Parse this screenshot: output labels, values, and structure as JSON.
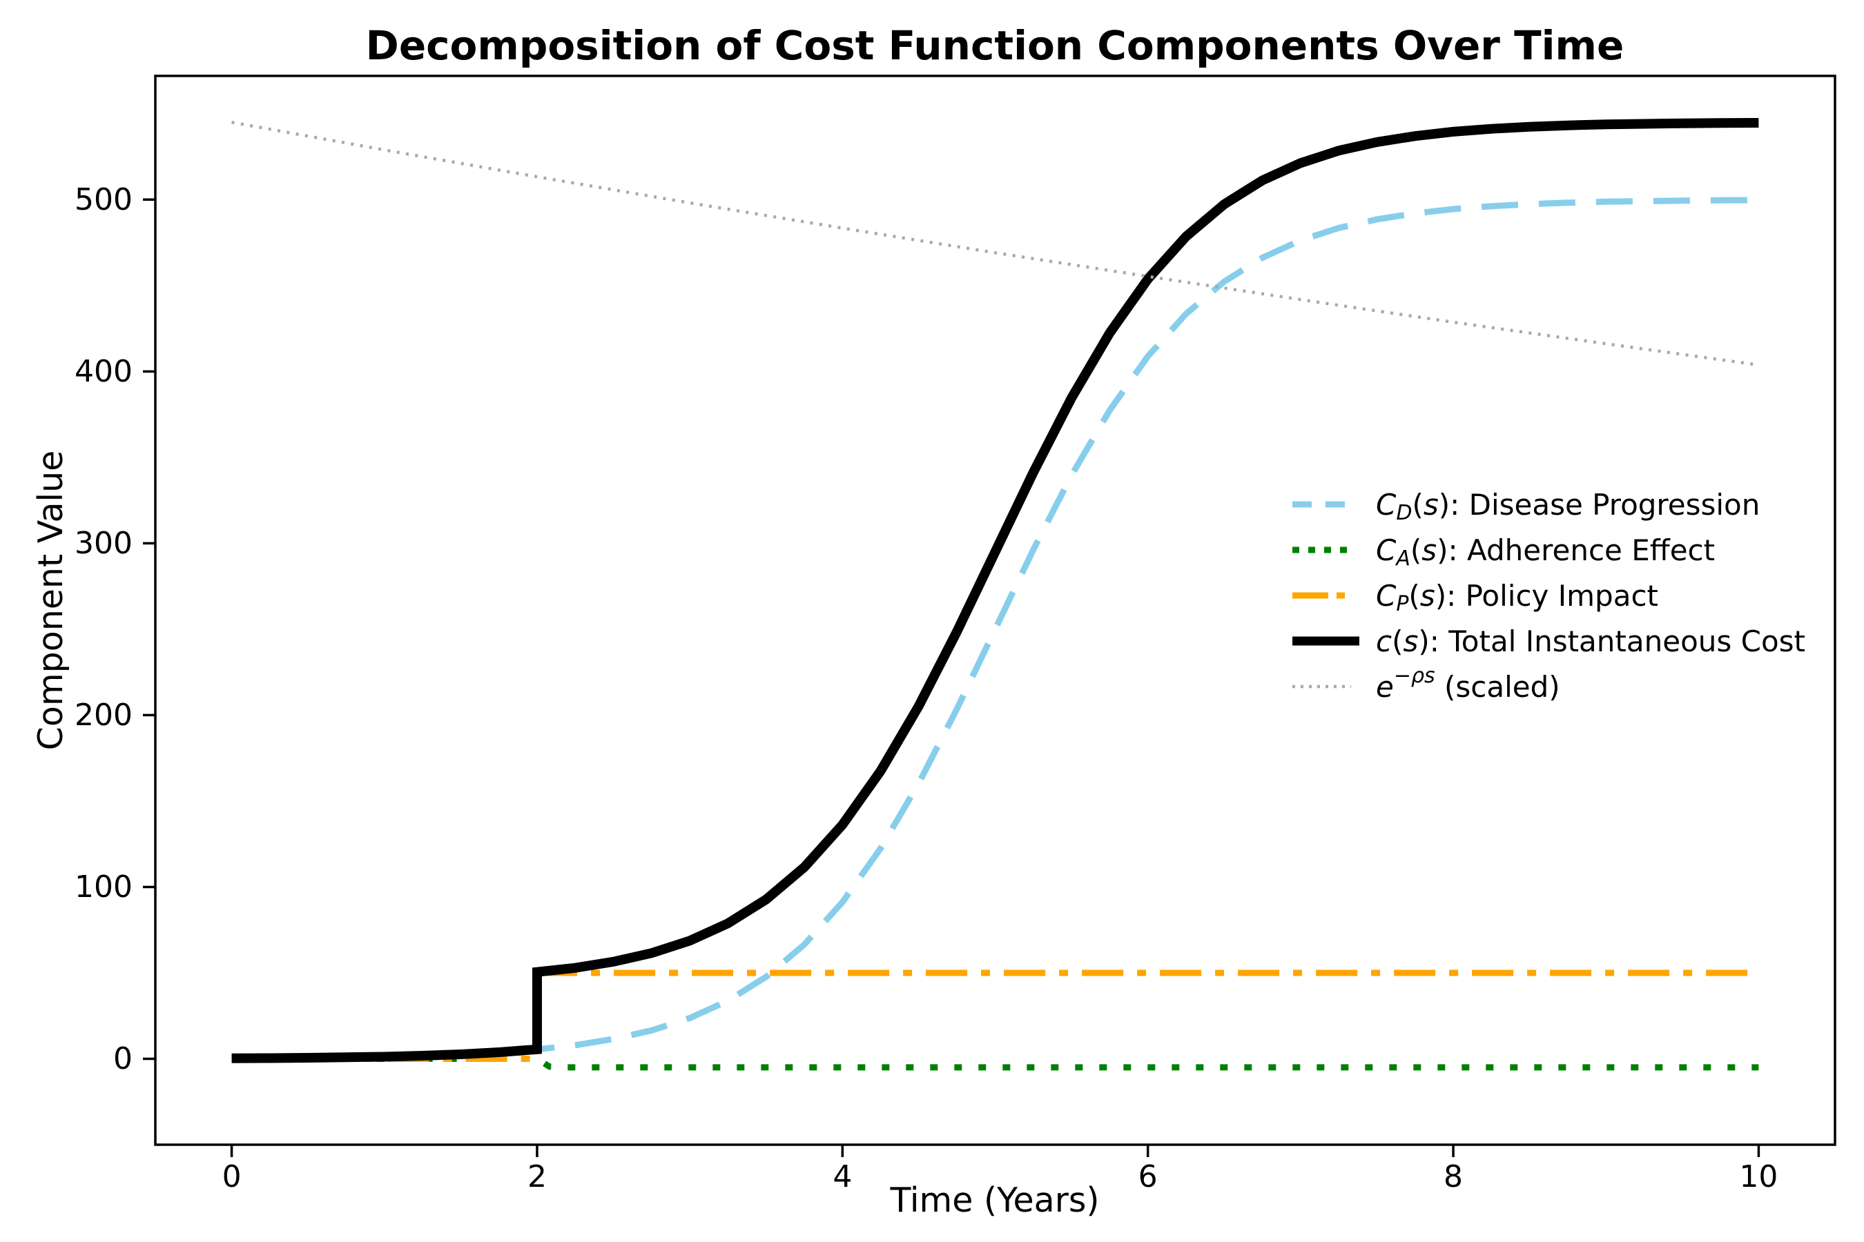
{
  "figure": {
    "background": "#ffffff"
  },
  "chart_data": {
    "type": "line",
    "title": "Decomposition of Cost Function Components Over Time",
    "xlabel": "Time (Years)",
    "ylabel": "Component Value",
    "xlim": [
      -0.5,
      10.5
    ],
    "ylim": [
      -50,
      572
    ],
    "x_ticks": [
      0,
      2,
      4,
      6,
      8,
      10
    ],
    "y_ticks": [
      0,
      100,
      200,
      300,
      400,
      500
    ],
    "grid": false,
    "legend": {
      "position": "center-right",
      "frame": false
    },
    "series": [
      {
        "name": "disease-progression",
        "label": "C_D(s): Disease Progression",
        "label_segments": [
          {
            "text": "C",
            "style": "italic"
          },
          {
            "text": "D",
            "style": "italic",
            "script": "sub"
          },
          {
            "text": "(",
            "style": "normal"
          },
          {
            "text": "s",
            "style": "italic"
          },
          {
            "text": "): Disease Progression",
            "style": "normal"
          }
        ],
        "color": "#87ceeb",
        "linestyle": "dashed",
        "dash": [
          53,
          30
        ],
        "legend_dash": [
          28,
          20
        ],
        "legend_len": 76,
        "width": 9,
        "x": [
          0,
          0.25,
          0.5,
          0.75,
          1,
          1.25,
          1.5,
          1.75,
          2,
          2.25,
          2.5,
          2.75,
          3,
          3.25,
          3.5,
          3.75,
          4,
          4.25,
          4.5,
          4.75,
          5,
          5.25,
          5.5,
          5.75,
          6,
          6.25,
          6.5,
          6.75,
          7,
          7.25,
          7.5,
          7.75,
          8,
          8.25,
          8.5,
          8.75,
          9,
          9.25,
          9.5,
          9.75,
          10
        ],
        "y": [
          0.3,
          0.4,
          0.6,
          0.9,
          1.2,
          1.8,
          2.6,
          3.8,
          5.5,
          7.9,
          11.5,
          16.5,
          23.7,
          33.8,
          47.7,
          66.5,
          91.2,
          122.5,
          160.4,
          203.7,
          250,
          296.3,
          339.6,
          377.4,
          408.8,
          433.5,
          452.3,
          466.2,
          476.3,
          483.5,
          488.5,
          492.0,
          494.5,
          496.2,
          497.4,
          498.2,
          498.8,
          499.1,
          499.4,
          499.6,
          499.7
        ]
      },
      {
        "name": "adherence-effect",
        "label": "C_A(s): Adherence Effect",
        "label_segments": [
          {
            "text": "C",
            "style": "italic"
          },
          {
            "text": "A",
            "style": "italic",
            "script": "sub"
          },
          {
            "text": "(",
            "style": "normal"
          },
          {
            "text": "s",
            "style": "italic"
          },
          {
            "text": "): Adherence Effect",
            "style": "normal"
          }
        ],
        "color": "#008000",
        "linestyle": "dotted",
        "dash": [
          11,
          24
        ],
        "legend_dash": [
          10,
          13
        ],
        "legend_len": 79,
        "width": 9,
        "x": [
          0,
          2,
          2.08,
          2.2,
          10
        ],
        "y": [
          0,
          0,
          -4.5,
          -5,
          -5
        ]
      },
      {
        "name": "policy-impact",
        "label": "C_P(s): Policy Impact",
        "label_segments": [
          {
            "text": "C",
            "style": "italic"
          },
          {
            "text": "P",
            "style": "italic",
            "script": "sub"
          },
          {
            "text": "(",
            "style": "normal"
          },
          {
            "text": "s",
            "style": "italic"
          },
          {
            "text": "): Policy Impact",
            "style": "normal"
          }
        ],
        "color": "#ffa500",
        "linestyle": "dashdot",
        "dash": [
          60,
          20,
          13,
          20
        ],
        "legend_dash": [
          52,
          12,
          12
        ],
        "legend_len": 76,
        "width": 9,
        "x": [
          0,
          2,
          2,
          10
        ],
        "y": [
          0,
          0,
          50,
          50
        ]
      },
      {
        "name": "total-cost",
        "label": "c(s): Total Instantaneous Cost",
        "label_segments": [
          {
            "text": "c",
            "style": "italic"
          },
          {
            "text": "(",
            "style": "normal"
          },
          {
            "text": "s",
            "style": "italic"
          },
          {
            "text": "): Total Instantaneous Cost",
            "style": "normal"
          }
        ],
        "color": "#000000",
        "linestyle": "solid",
        "dash": [],
        "legend_dash": [],
        "legend_len": 97,
        "width": 14,
        "x": [
          0,
          0.25,
          0.5,
          0.75,
          1,
          1.25,
          1.5,
          1.75,
          2,
          2,
          2.25,
          2.5,
          2.75,
          3,
          3.25,
          3.5,
          3.75,
          4,
          4.25,
          4.5,
          4.75,
          5,
          5.25,
          5.5,
          5.75,
          6,
          6.25,
          6.5,
          6.75,
          7,
          7.25,
          7.5,
          7.75,
          8,
          8.25,
          8.5,
          8.75,
          9,
          9.25,
          9.5,
          9.75,
          10
        ],
        "y": [
          0.3,
          0.4,
          0.6,
          0.9,
          1.2,
          1.8,
          2.6,
          3.8,
          5.5,
          50.5,
          52.9,
          56.5,
          61.5,
          68.7,
          78.8,
          92.7,
          111.5,
          136.2,
          167.5,
          205.4,
          248.7,
          295,
          341.3,
          384.6,
          422.4,
          453.8,
          478.5,
          497.3,
          511.2,
          521.3,
          528.5,
          533.5,
          537,
          539.5,
          541.2,
          542.4,
          543.2,
          543.8,
          544.1,
          544.4,
          544.6,
          544.7
        ]
      },
      {
        "name": "discount-factor",
        "label": "e^-ps (scaled)",
        "label_segments": [
          {
            "text": "e",
            "style": "italic"
          },
          {
            "text": "−ρs",
            "style": "italic",
            "script": "super"
          },
          {
            "text": " (scaled)",
            "style": "normal"
          }
        ],
        "color": "#a8a8a8",
        "linestyle": "dotted",
        "dash": [
          4,
          9.5
        ],
        "legend_dash": [
          4,
          8
        ],
        "legend_len": 85,
        "width": 4.5,
        "x": [
          0,
          1,
          2,
          3,
          4,
          5,
          6,
          7,
          8,
          9,
          10
        ],
        "y": [
          545,
          528.9,
          513.3,
          498.1,
          483.4,
          469.1,
          455.3,
          441.8,
          428.7,
          416.1,
          403.8
        ]
      }
    ]
  }
}
